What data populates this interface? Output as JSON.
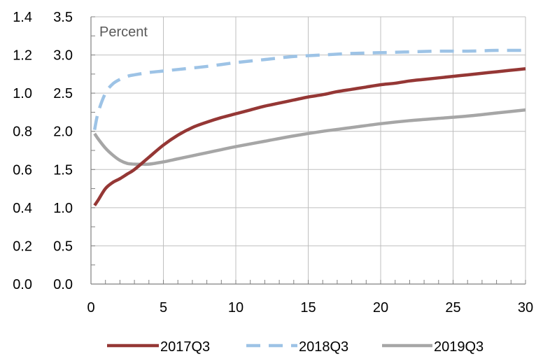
{
  "chart_data": {
    "type": "line",
    "title": "",
    "annotation": "Percent",
    "xlabel": "",
    "ylabel": "",
    "xlim": [
      0,
      30
    ],
    "ylim": [
      0,
      3.5
    ],
    "x_ticks": [
      "0",
      "5",
      "10",
      "15",
      "20",
      "25",
      "30"
    ],
    "y_ticks": [
      "0.0",
      "0.5",
      "1.0",
      "1.5",
      "2.0",
      "2.5",
      "3.0",
      "3.5"
    ],
    "y_ticks_left": [
      "0.0",
      "0.2",
      "0.4",
      "0.6",
      "0.8",
      "1.0",
      "1.2",
      "1.4"
    ],
    "grid": true,
    "legend_position": "bottom",
    "series": [
      {
        "name": "2017Q3",
        "color": "#953735",
        "style": "solid",
        "x": [
          0.25,
          0.5,
          1,
          1.5,
          2,
          2.5,
          3,
          4,
          5,
          6,
          7,
          8,
          9,
          10,
          11,
          12,
          13,
          14,
          15,
          16,
          17,
          18,
          19,
          20,
          21,
          22,
          23,
          24,
          25,
          26,
          27,
          28,
          29,
          30
        ],
        "y": [
          1.03,
          1.1,
          1.25,
          1.33,
          1.38,
          1.44,
          1.5,
          1.66,
          1.82,
          1.95,
          2.05,
          2.12,
          2.18,
          2.23,
          2.28,
          2.33,
          2.37,
          2.41,
          2.45,
          2.48,
          2.52,
          2.55,
          2.58,
          2.61,
          2.63,
          2.66,
          2.68,
          2.7,
          2.72,
          2.74,
          2.76,
          2.78,
          2.8,
          2.82
        ]
      },
      {
        "name": "2018Q3",
        "color": "#9dc3e6",
        "style": "dashed",
        "x": [
          0.25,
          0.5,
          1,
          1.5,
          2,
          2.5,
          3,
          4,
          5,
          6,
          8,
          10,
          12,
          14,
          16,
          18,
          20,
          22,
          24,
          26,
          28,
          30
        ],
        "y": [
          2.02,
          2.25,
          2.5,
          2.62,
          2.68,
          2.72,
          2.74,
          2.77,
          2.79,
          2.81,
          2.85,
          2.9,
          2.94,
          2.98,
          3.0,
          3.02,
          3.03,
          3.04,
          3.05,
          3.05,
          3.06,
          3.06
        ]
      },
      {
        "name": "2019Q3",
        "color": "#a6a6a6",
        "style": "solid",
        "x": [
          0.25,
          0.5,
          1,
          1.5,
          2,
          2.5,
          3,
          3.5,
          4,
          5,
          6,
          7,
          8,
          9,
          10,
          12,
          14,
          16,
          18,
          20,
          22,
          24,
          26,
          28,
          30
        ],
        "y": [
          1.97,
          1.9,
          1.78,
          1.69,
          1.62,
          1.58,
          1.57,
          1.57,
          1.57,
          1.6,
          1.64,
          1.68,
          1.72,
          1.76,
          1.8,
          1.87,
          1.94,
          2.0,
          2.05,
          2.1,
          2.14,
          2.17,
          2.2,
          2.24,
          2.28
        ]
      }
    ]
  }
}
